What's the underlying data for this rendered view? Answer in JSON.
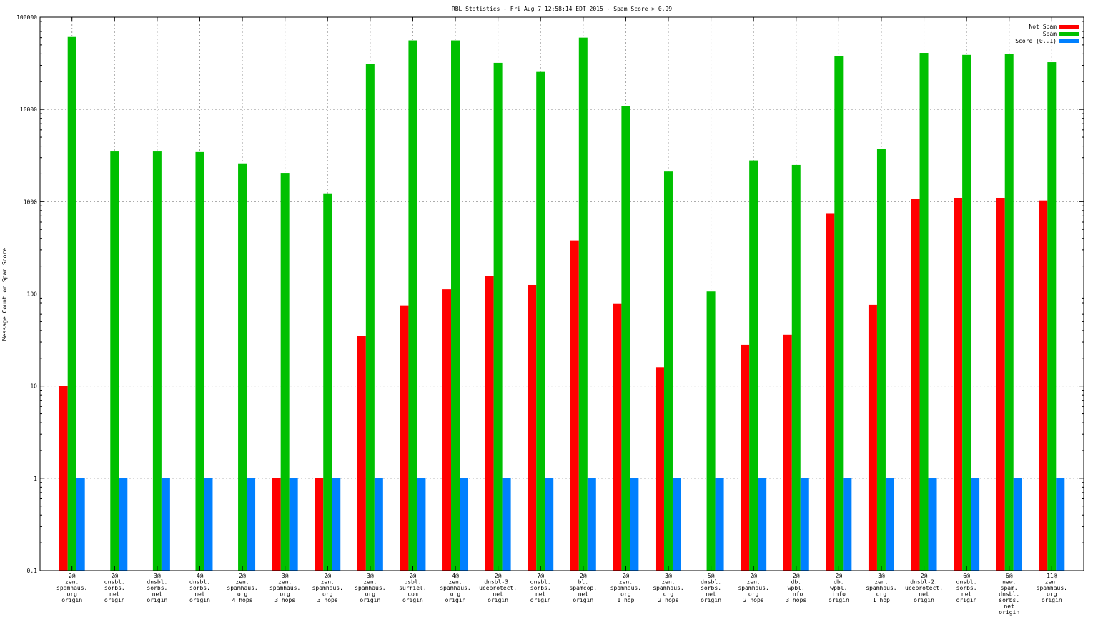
{
  "chart_data": {
    "type": "bar",
    "title": "RBL Statistics - Fri Aug  7 12:58:14 EDT 2015 - Spam Score > 0.99",
    "ylabel": "Message Count or Spam Score",
    "xlabel": "",
    "yscale": "log",
    "ylim": [
      0.1,
      100000
    ],
    "yticks": [
      {
        "value": 0.1,
        "label": "0.1"
      },
      {
        "value": 1,
        "label": "1"
      },
      {
        "value": 10,
        "label": "10"
      },
      {
        "value": 100,
        "label": "100"
      },
      {
        "value": 1000,
        "label": "1000"
      },
      {
        "value": 10000,
        "label": "10000"
      },
      {
        "value": 100000,
        "label": "100000"
      }
    ],
    "grid": true,
    "legend_position": "top-right",
    "categories": [
      [
        "2@",
        "zen.",
        "spamhaus.",
        "org",
        "origin"
      ],
      [
        "2@",
        "dnsbl.",
        "sorbs.",
        "net",
        "origin"
      ],
      [
        "3@",
        "dnsbl.",
        "sorbs.",
        "net",
        "origin"
      ],
      [
        "4@",
        "dnsbl.",
        "sorbs.",
        "net",
        "origin"
      ],
      [
        "2@",
        "zen.",
        "spamhaus.",
        "org",
        "4 hops"
      ],
      [
        "3@",
        "zen.",
        "spamhaus.",
        "org",
        "3 hops"
      ],
      [
        "2@",
        "zen.",
        "spamhaus.",
        "org",
        "3 hops"
      ],
      [
        "3@",
        "zen.",
        "spamhaus.",
        "org",
        "origin"
      ],
      [
        "2@",
        "psbl.",
        "surriel.",
        "com",
        "origin"
      ],
      [
        "4@",
        "zen.",
        "spamhaus.",
        "org",
        "origin"
      ],
      [
        "2@",
        "dnsbl-3.",
        "uceprotect.",
        "net",
        "origin"
      ],
      [
        "7@",
        "dnsbl.",
        "sorbs.",
        "net",
        "origin"
      ],
      [
        "2@",
        "bl.",
        "spamcop.",
        "net",
        "origin"
      ],
      [
        "2@",
        "zen.",
        "spamhaus.",
        "org",
        "1 hop"
      ],
      [
        "3@",
        "zen.",
        "spamhaus.",
        "org",
        "2 hops"
      ],
      [
        "5@",
        "dnsbl.",
        "sorbs.",
        "net",
        "origin"
      ],
      [
        "2@",
        "zen.",
        "spamhaus.",
        "org",
        "2 hops"
      ],
      [
        "2@",
        "db.",
        "wpbl.",
        "info",
        "3 hops"
      ],
      [
        "2@",
        "db.",
        "wpbl.",
        "info",
        "origin"
      ],
      [
        "3@",
        "zen.",
        "spamhaus.",
        "org",
        "1 hop"
      ],
      [
        "2@",
        "dnsbl-2.",
        "uceprotect.",
        "net",
        "origin"
      ],
      [
        "6@",
        "dnsbl.",
        "sorbs.",
        "net",
        "origin"
      ],
      [
        "6@",
        "new.",
        "spam.",
        "dnsbl.",
        "sorbs.",
        "net",
        "origin"
      ],
      [
        "11@",
        "zen.",
        "spamhaus.",
        "org",
        "origin"
      ]
    ],
    "series": [
      {
        "name": "Not Spam",
        "color": "#ff0000",
        "values": [
          10,
          null,
          null,
          null,
          null,
          1,
          1,
          35,
          75,
          112,
          155,
          125,
          380,
          79,
          16,
          null,
          28,
          36,
          750,
          76,
          1080,
          1100,
          1100,
          1030
        ]
      },
      {
        "name": "Spam",
        "color": "#00c000",
        "values": [
          61000,
          3500,
          3500,
          3450,
          2600,
          2050,
          1230,
          31000,
          56000,
          56000,
          32000,
          25500,
          60000,
          10800,
          2120,
          106,
          2800,
          2500,
          38000,
          3700,
          41000,
          39000,
          40000,
          32500
        ]
      },
      {
        "name": "Score (0..1)",
        "color": "#0080ff",
        "values": [
          1,
          1,
          1,
          1,
          1,
          1,
          1,
          1,
          1,
          1,
          1,
          1,
          1,
          1,
          1,
          1,
          1,
          1,
          1,
          1,
          1,
          1,
          1,
          1
        ]
      }
    ]
  }
}
